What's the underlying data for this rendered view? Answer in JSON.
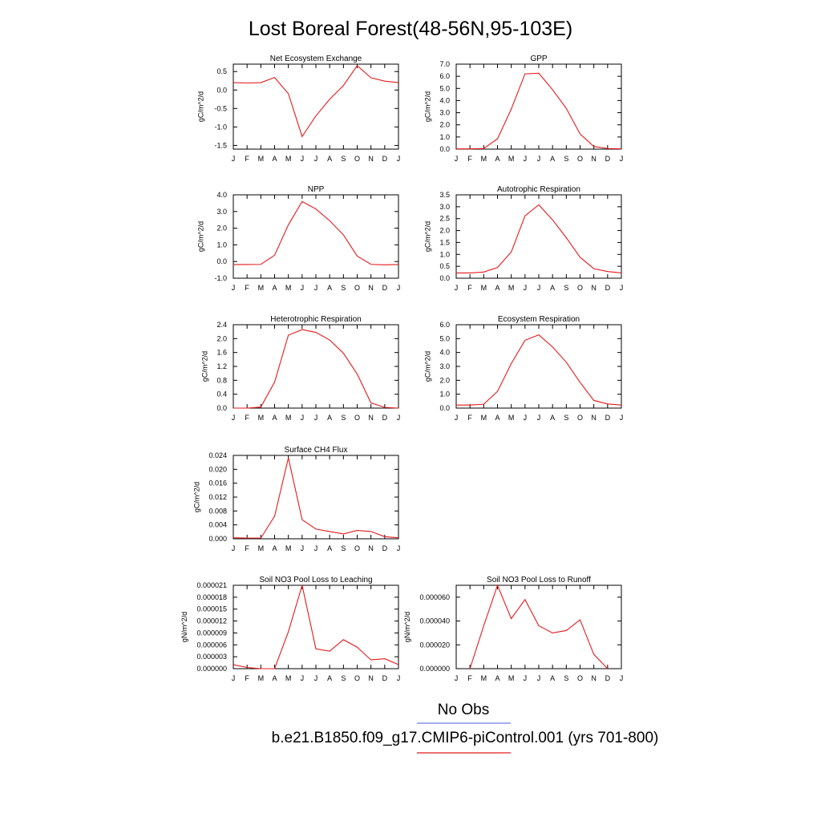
{
  "title": "Lost Boreal Forest(48-56N,95-103E)",
  "months": [
    "J",
    "F",
    "M",
    "A",
    "M",
    "J",
    "J",
    "A",
    "S",
    "O",
    "N",
    "D",
    "J"
  ],
  "legend": {
    "obs": {
      "label": "No Obs",
      "color": "#6f7bf0"
    },
    "model": {
      "label": "b.e21.B1850.f09_g17.CMIP6-piControl.001 (yrs 701-800)",
      "color": "#e41a1c"
    }
  },
  "chart_data": [
    {
      "type": "line",
      "title": "Net Ecosystem Exchange",
      "ylabel": "gC/m^2/d",
      "ylim": [
        -1.6,
        0.7
      ],
      "yticks": [
        0.5,
        0.0,
        -0.5,
        -1.0,
        -1.5
      ],
      "ytick_labels": [
        "0.5",
        "0.0",
        "-0.5",
        "-1.0",
        "-1.5"
      ],
      "series": [
        {
          "values": [
            0.2,
            0.19,
            0.2,
            0.34,
            -0.1,
            -1.26,
            -0.7,
            -0.25,
            0.12,
            0.66,
            0.33,
            0.24,
            0.2
          ]
        }
      ]
    },
    {
      "type": "line",
      "title": "GPP",
      "ylabel": "gC/m^2/d",
      "ylim": [
        0.0,
        7.0
      ],
      "yticks": [
        7.0,
        6.0,
        5.0,
        4.0,
        3.0,
        2.0,
        1.0,
        0.0
      ],
      "ytick_labels": [
        "7.0",
        "6.0",
        "5.0",
        "4.0",
        "3.0",
        "2.0",
        "1.0",
        "0.0"
      ],
      "series": [
        {
          "values": [
            0.02,
            0.02,
            0.05,
            0.85,
            3.3,
            6.2,
            6.25,
            4.9,
            3.35,
            1.25,
            0.22,
            0.05,
            0.02
          ]
        }
      ]
    },
    {
      "type": "line",
      "title": "NPP",
      "ylabel": "gC/m^2/d",
      "ylim": [
        -1.0,
        4.0
      ],
      "yticks": [
        4.0,
        3.0,
        2.0,
        1.0,
        0.0,
        -1.0
      ],
      "ytick_labels": [
        "4.0",
        "3.0",
        "2.0",
        "1.0",
        "0.0",
        "-1.0"
      ],
      "series": [
        {
          "values": [
            -0.18,
            -0.18,
            -0.17,
            0.38,
            2.2,
            3.6,
            3.15,
            2.45,
            1.6,
            0.33,
            -0.17,
            -0.2,
            -0.18
          ]
        }
      ]
    },
    {
      "type": "line",
      "title": "Autotrophic Respiration",
      "ylabel": "gC/m^2/d",
      "ylim": [
        0.0,
        3.5
      ],
      "yticks": [
        3.5,
        3.0,
        2.5,
        2.0,
        1.5,
        1.0,
        0.5,
        0.0
      ],
      "ytick_labels": [
        "3.5",
        "3.0",
        "2.5",
        "2.0",
        "1.5",
        "1.0",
        "0.5",
        "0.0"
      ],
      "series": [
        {
          "values": [
            0.22,
            0.22,
            0.26,
            0.45,
            1.1,
            2.62,
            3.08,
            2.45,
            1.7,
            0.88,
            0.4,
            0.28,
            0.22
          ]
        }
      ]
    },
    {
      "type": "line",
      "title": "Heterotrophic Respiration",
      "ylabel": "gC/m^2/d",
      "ylim": [
        0.0,
        2.4
      ],
      "yticks": [
        2.4,
        2.0,
        1.6,
        1.2,
        0.8,
        0.4,
        0.0
      ],
      "ytick_labels": [
        "2.4",
        "2.0",
        "1.6",
        "1.2",
        "0.8",
        "0.4",
        "0.0"
      ],
      "series": [
        {
          "values": [
            0.0,
            0.0,
            0.03,
            0.75,
            2.1,
            2.26,
            2.18,
            1.96,
            1.58,
            0.98,
            0.15,
            0.02,
            0.0
          ]
        }
      ]
    },
    {
      "type": "line",
      "title": "Ecosystem Respiration",
      "ylabel": "gC/m^2/d",
      "ylim": [
        0.0,
        6.0
      ],
      "yticks": [
        6.0,
        5.0,
        4.0,
        3.0,
        2.0,
        1.0,
        0.0
      ],
      "ytick_labels": [
        "6.0",
        "5.0",
        "4.0",
        "3.0",
        "2.0",
        "1.0",
        "0.0"
      ],
      "series": [
        {
          "values": [
            0.22,
            0.22,
            0.28,
            1.2,
            3.2,
            4.88,
            5.27,
            4.4,
            3.3,
            1.85,
            0.55,
            0.3,
            0.22
          ]
        }
      ]
    },
    {
      "type": "line",
      "title": "Surface CH4 Flux",
      "ylabel": "gC/m^2/d",
      "ylim": [
        0.0,
        0.024
      ],
      "yticks": [
        0.024,
        0.02,
        0.016,
        0.012,
        0.008,
        0.004,
        0.0
      ],
      "ytick_labels": [
        "0.024",
        "0.020",
        "0.016",
        "0.012",
        "0.008",
        "0.004",
        "0.000"
      ],
      "series": [
        {
          "values": [
            0.0003,
            0.0002,
            0.0002,
            0.0065,
            0.0233,
            0.0055,
            0.0028,
            0.0021,
            0.0014,
            0.0024,
            0.0021,
            0.0006,
            0.0003
          ]
        }
      ]
    },
    {
      "type": "line",
      "title": "Soil NO3 Pool Loss to Leaching",
      "ylabel": "gN/m^2/d",
      "ylim": [
        0.0,
        2.1e-05
      ],
      "yticks": [
        2.1e-05,
        1.8e-05,
        1.5e-05,
        1.2e-05,
        9e-06,
        6e-06,
        3e-06,
        0.0
      ],
      "ytick_labels": [
        "0.000021",
        "0.000018",
        "0.000015",
        "0.000012",
        "0.000009",
        "0.000006",
        "0.000003",
        "0.000000"
      ],
      "series": [
        {
          "values": [
            1e-06,
            3e-07,
            0.0,
            0.0,
            9.3e-06,
            2.1e-05,
            5e-06,
            4.4e-06,
            7.3e-06,
            5.4e-06,
            2.2e-06,
            2.5e-06,
            1e-06
          ]
        }
      ]
    },
    {
      "type": "line",
      "title": "Soil NO3 Pool Loss to Runoff",
      "ylabel": "gN/m^2/d",
      "ylim": [
        0.0,
        7e-05
      ],
      "yticks": [
        6e-05,
        4e-05,
        2e-05,
        0.0
      ],
      "ytick_labels": [
        "0.000060",
        "0.000040",
        "0.000020",
        "0.000000"
      ],
      "series": [
        {
          "values": [
            null,
            0.0,
            3.6e-05,
            7e-05,
            4.2e-05,
            5.8e-05,
            3.6e-05,
            3e-05,
            3.2e-05,
            4.1e-05,
            1.2e-05,
            0.0,
            null
          ]
        }
      ]
    }
  ]
}
